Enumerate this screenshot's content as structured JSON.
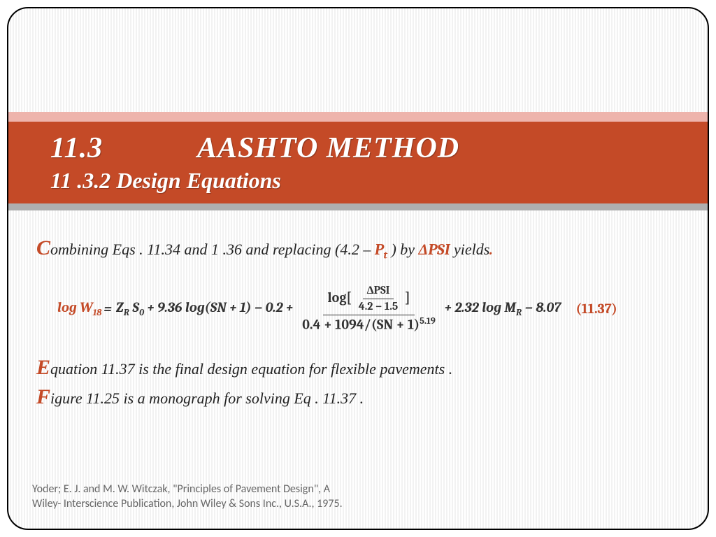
{
  "colors": {
    "accent": "#c44a27",
    "band_pink": "#eeb4ac",
    "band_gray": "#afafaf",
    "text": "#222222",
    "citation": "#666666",
    "bg_stripe_a": "#ffffff",
    "bg_stripe_b": "#f2f2f2",
    "border": "#000000"
  },
  "typography": {
    "title_main_pt": 42,
    "title_sub_pt": 32,
    "body_pt": 22,
    "dropcap_pt": 30,
    "equation_pt": 20,
    "citation_pt": 16,
    "body_family": "Georgia",
    "equation_family": "Cambria",
    "citation_family": "Calibri"
  },
  "title": {
    "section_number": "11.3",
    "section_name": "AASHTO METHOD",
    "subsection": "11 .3.2 Design Equations"
  },
  "body": {
    "intro_cap": "C",
    "intro_rest_a": "ombining Eqs . 11.34 and 1 .36 and replacing (4.2 – ",
    "intro_sym1_base": "P",
    "intro_sym1_sub": "t",
    "intro_rest_b": " ) by ",
    "intro_sym2": "ΔPSI",
    "intro_rest_c": "  yields",
    "intro_dot": ".",
    "eq": {
      "lhs_prefix": "log W",
      "lhs_sub": "18",
      "rhs_1": "Z",
      "rhs_1_sub": "R",
      "rhs_2": " S",
      "rhs_2_sub": "0",
      "rhs_3": " + 9.36 log(SN + 1) − 0.2 + ",
      "frac_num_prefix": "log[",
      "frac_num_inner_num": "ΔPSI",
      "frac_num_inner_den": "4.2 − 1.5",
      "frac_num_suffix": "]",
      "frac_den_a": "0.4 + 1094/(SN + 1)",
      "frac_den_exp": "5.19",
      "rhs_4": " + 2.32 log M",
      "rhs_4_sub": "R",
      "rhs_5": " − 8.07",
      "number": "(11.37)"
    },
    "p2_cap": "E",
    "p2_rest": "quation 11.37 is the final design equation for flexible pavements .",
    "p3_cap": "F",
    "p3_rest": "igure 11.25 is a monograph for solving Eq . 11.37 ."
  },
  "citation": {
    "line1": "Yoder; E. J. and M. W. Witczak, \"Principles of Pavement Design\", A",
    "line2": "Wiley- Interscience Publication, John Wiley & Sons Inc., U.S.A., 1975."
  }
}
